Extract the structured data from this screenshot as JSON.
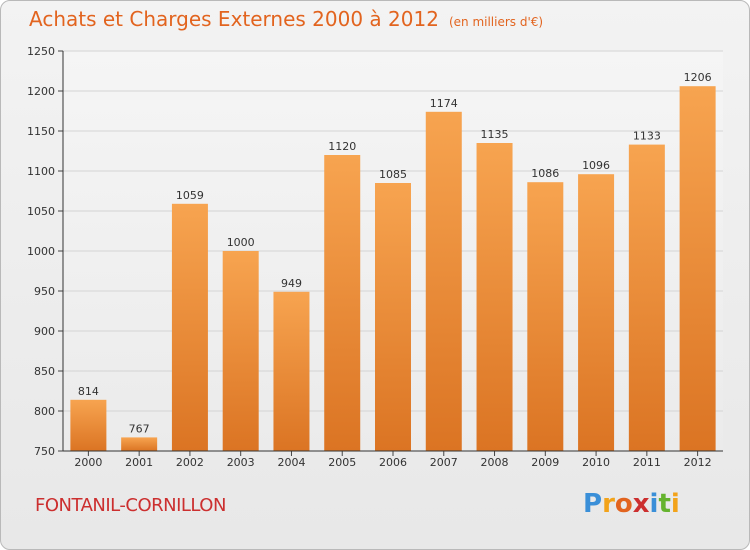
{
  "header": {
    "title": "Achats et Charges Externes 2000 à 2012",
    "unit": "(en milliers d'€)"
  },
  "footer": {
    "place": "FONTANIL-CORNILLON",
    "logo_text": "Proxiti",
    "logo_letters": [
      "P",
      "r",
      "o",
      "x",
      "i",
      "t",
      "i"
    ],
    "logo_colors": [
      "#3a8fd8",
      "#f2a31a",
      "#e2641f",
      "#cc2f2f",
      "#3a8fd8",
      "#65b32e",
      "#f2a31a"
    ]
  },
  "colors": {
    "accent": "#e2641f",
    "bar_top": "#f7a450",
    "bar_bottom": "#db7423",
    "place": "#cc2f2f"
  },
  "chart_data": {
    "type": "bar",
    "categories": [
      "2000",
      "2001",
      "2002",
      "2003",
      "2004",
      "2005",
      "2006",
      "2007",
      "2008",
      "2009",
      "2010",
      "2011",
      "2012"
    ],
    "values": [
      814,
      767,
      1059,
      1000,
      949,
      1120,
      1085,
      1174,
      1135,
      1086,
      1096,
      1133,
      1206
    ],
    "yticks": [
      750,
      800,
      850,
      900,
      950,
      1000,
      1050,
      1100,
      1150,
      1200,
      1250
    ],
    "ylim": [
      750,
      1250
    ],
    "grid": true,
    "legend": "none"
  }
}
